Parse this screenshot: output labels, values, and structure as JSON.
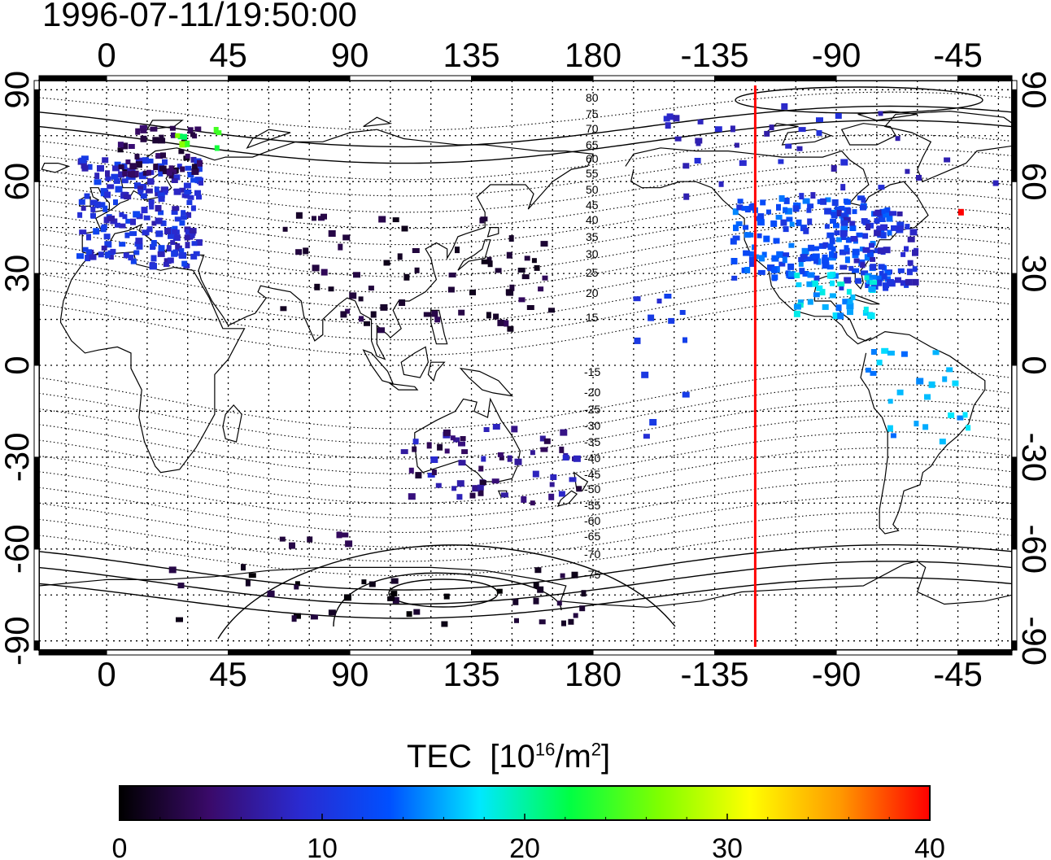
{
  "title": "1996-07-11/19:50:00",
  "colorbar": {
    "label": "TEC",
    "unit_prefix": "[10",
    "unit_exp1": "16",
    "unit_mid": "/m",
    "unit_exp2": "2",
    "unit_suffix": "]",
    "ticks": [
      "0",
      "10",
      "20",
      "30",
      "40"
    ],
    "min": 0,
    "max": 40,
    "stops": [
      "#000000",
      "#3a0a6a",
      "#2a2ad0",
      "#0050ff",
      "#00e8ff",
      "#00ff44",
      "#80ff00",
      "#ffff00",
      "#ff9900",
      "#ff0000"
    ]
  },
  "axes": {
    "top_ticks": [
      "0",
      "45",
      "90",
      "135",
      "180",
      "-135",
      "-90",
      "-45"
    ],
    "bottom_ticks": [
      "0",
      "45",
      "90",
      "135",
      "180",
      "-135",
      "-90",
      "-45"
    ],
    "left_ticks": [
      "90",
      "60",
      "30",
      "0",
      "-30",
      "-60",
      "-90"
    ],
    "right_ticks": [
      "90",
      "60",
      "30",
      "0",
      "-30",
      "-60",
      "-90"
    ]
  },
  "marker": {
    "longitude": -120,
    "color": "#ff0000"
  },
  "contour_labels": [
    "80",
    "75",
    "70",
    "65",
    "60",
    "55",
    "50",
    "45",
    "40",
    "35",
    "30",
    "25",
    "20",
    "15",
    "-15",
    "-20",
    "-25",
    "-30",
    "-35",
    "-40",
    "-45",
    "-50",
    "-55",
    "-60",
    "-65",
    "-70",
    "-75"
  ],
  "map_data": {
    "type": "heatmap",
    "projection": "equirectangular",
    "lon_range": [
      -25,
      335
    ],
    "lat_range": [
      -93,
      93
    ],
    "value_unit": "TEC",
    "clusters": [
      {
        "name": "europe",
        "lon": [
          -10,
          35
        ],
        "lat": [
          32,
          68
        ],
        "tec": [
          7,
          12
        ]
      },
      {
        "name": "europe-north",
        "lon": [
          5,
          35
        ],
        "lat": [
          62,
          78
        ],
        "tec": [
          1,
          5
        ]
      },
      {
        "name": "scandinavia-green",
        "lon": [
          20,
          42
        ],
        "lat": [
          70,
          78
        ],
        "tec": [
          18,
          27
        ]
      },
      {
        "name": "north-america",
        "lon": [
          232,
          290
        ],
        "lat": [
          28,
          55
        ],
        "tec": [
          10,
          15
        ]
      },
      {
        "name": "north-america-east",
        "lon": [
          270,
          300
        ],
        "lat": [
          25,
          50
        ],
        "tec": [
          7,
          11
        ]
      },
      {
        "name": "central-america",
        "lon": [
          255,
          285
        ],
        "lat": [
          15,
          30
        ],
        "tec": [
          14,
          19
        ]
      },
      {
        "name": "south-america",
        "lon": [
          280,
          320
        ],
        "lat": [
          -25,
          5
        ],
        "tec": [
          14,
          18
        ]
      },
      {
        "name": "asia",
        "lon": [
          60,
          165
        ],
        "lat": [
          10,
          50
        ],
        "tec": [
          1,
          4
        ]
      },
      {
        "name": "australia",
        "lon": [
          110,
          175
        ],
        "lat": [
          -45,
          -20
        ],
        "tec": [
          2,
          9
        ]
      },
      {
        "name": "antarctica",
        "lon": [
          20,
          180
        ],
        "lat": [
          -85,
          -65
        ],
        "tec": [
          0,
          3
        ]
      },
      {
        "name": "canada-arctic",
        "lon": [
          200,
          345
        ],
        "lat": [
          55,
          85
        ],
        "tec": [
          7,
          10
        ]
      },
      {
        "name": "pacific",
        "lon": [
          195,
          215
        ],
        "lat": [
          -25,
          25
        ],
        "tec": [
          9,
          12
        ]
      },
      {
        "name": "scattered-south",
        "lon": [
          65,
          100
        ],
        "lat": [
          -60,
          -55
        ],
        "tec": [
          2,
          4
        ]
      }
    ],
    "max_point": {
      "lon": 316,
      "lat": 50,
      "tec": 40
    }
  }
}
